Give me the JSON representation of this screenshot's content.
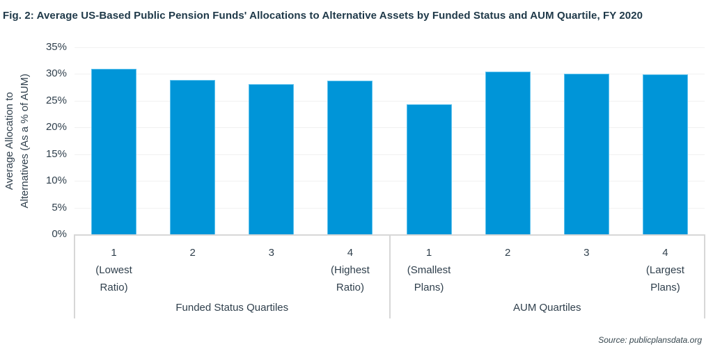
{
  "title": "Fig. 2: Average US-Based Public Pension Funds' Allocations to Alternative Assets by Funded Status and AUM Quartile, FY 2020",
  "source": "Source: publicplansdata.org",
  "chart_data": {
    "type": "bar",
    "title": "Fig. 2: Average US-Based Public Pension Funds' Allocations to Alternative Assets by Funded Status and AUM Quartile, FY 2020",
    "ylabel": "Average Allocation to Alternatives (As a % of AUM)",
    "ylabel_lines": [
      "Average Allocation to",
      "Alternatives (As a % of AUM)"
    ],
    "ylim": [
      0,
      35
    ],
    "ytick_step": 5,
    "ytick_suffix": "%",
    "grid": true,
    "legend": "none",
    "bar_color": "#0095d8",
    "bar_border_color": "#5fc3ee",
    "groups": [
      {
        "label": "Funded Status Quartiles",
        "categories": [
          "1\n(Lowest\nRatio)",
          "2",
          "3",
          "4\n(Highest\nRatio)"
        ],
        "values": [
          31.0,
          28.9,
          28.1,
          28.8
        ]
      },
      {
        "label": "AUM Quartiles",
        "categories": [
          "1\n(Smallest\nPlans)",
          "2",
          "3",
          "4\n(Largest\nPlans)"
        ],
        "values": [
          24.3,
          30.5,
          30.1,
          29.9
        ]
      }
    ]
  }
}
